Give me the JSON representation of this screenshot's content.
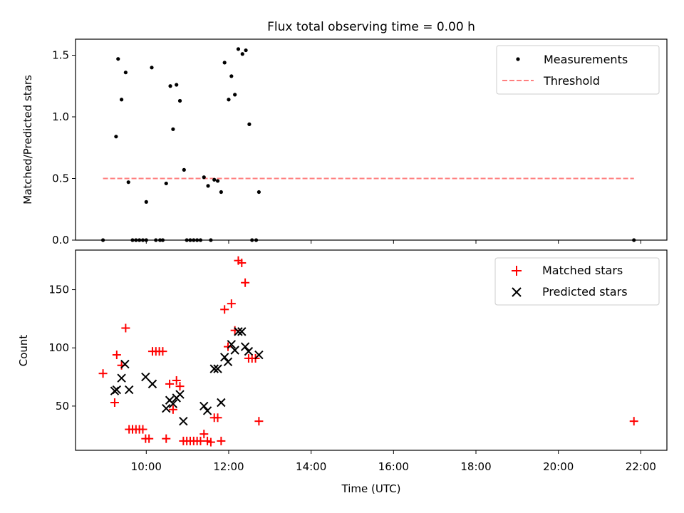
{
  "chart_data": [
    {
      "type": "scatter",
      "title": "Flux total observing time = 0.00 h",
      "xlabel": "",
      "ylabel": "Matched/Predicted stars",
      "xlim": [
        "08:17",
        "22:38"
      ],
      "ylim": [
        0,
        1.63
      ],
      "yticks": [
        0,
        0.5,
        1.0,
        1.5
      ],
      "ytick_labels": [
        "0.0",
        "0.5",
        "1.0",
        "1.5"
      ],
      "legend_position": "upper right",
      "series": [
        {
          "name": "Measurements",
          "marker": "dot",
          "color": "#000000",
          "points": [
            [
              "08:57",
              0.0
            ],
            [
              "09:16",
              0.84
            ],
            [
              "09:19",
              1.47
            ],
            [
              "09:24",
              1.14
            ],
            [
              "09:30",
              1.36
            ],
            [
              "09:34",
              0.47
            ],
            [
              "09:40",
              0.0
            ],
            [
              "09:45",
              0.0
            ],
            [
              "09:50",
              0.0
            ],
            [
              "09:55",
              0.0
            ],
            [
              "10:00",
              0.31
            ],
            [
              "10:00",
              0.0
            ],
            [
              "10:08",
              1.4
            ],
            [
              "10:14",
              0.0
            ],
            [
              "10:20",
              0.0
            ],
            [
              "10:24",
              0.0
            ],
            [
              "10:29",
              0.46
            ],
            [
              "10:35",
              1.25
            ],
            [
              "10:39",
              0.9
            ],
            [
              "10:44",
              1.26
            ],
            [
              "10:49",
              1.13
            ],
            [
              "10:55",
              0.57
            ],
            [
              "10:59",
              0.0
            ],
            [
              "11:04",
              0.0
            ],
            [
              "11:09",
              0.0
            ],
            [
              "11:14",
              0.0
            ],
            [
              "11:19",
              0.0
            ],
            [
              "11:24",
              0.51
            ],
            [
              "11:30",
              0.44
            ],
            [
              "11:34",
              0.0
            ],
            [
              "11:39",
              0.49
            ],
            [
              "11:44",
              0.48
            ],
            [
              "11:49",
              0.39
            ],
            [
              "11:54",
              1.44
            ],
            [
              "12:00",
              1.14
            ],
            [
              "12:04",
              1.33
            ],
            [
              "12:09",
              1.18
            ],
            [
              "12:14",
              1.55
            ],
            [
              "12:20",
              1.51
            ],
            [
              "12:25",
              1.54
            ],
            [
              "12:30",
              0.94
            ],
            [
              "12:34",
              0.0
            ],
            [
              "12:40",
              0.0
            ],
            [
              "12:44",
              0.39
            ],
            [
              "21:50",
              0.0
            ]
          ]
        },
        {
          "name": "Threshold",
          "line_style": "dashed",
          "color": "#ff7f7f",
          "points": [
            [
              "08:57",
              0.5
            ],
            [
              "21:50",
              0.5
            ]
          ]
        }
      ]
    },
    {
      "type": "scatter",
      "title": "",
      "xlabel": "Time (UTC)",
      "ylabel": "Count",
      "xlim": [
        "08:17",
        "22:38"
      ],
      "ylim": [
        12,
        184
      ],
      "yticks": [
        50,
        100,
        150
      ],
      "ytick_labels": [
        "50",
        "100",
        "150"
      ],
      "xticks": [
        "10:00",
        "12:00",
        "14:00",
        "16:00",
        "18:00",
        "20:00",
        "22:00"
      ],
      "xtick_labels": [
        "10:00",
        "12:00",
        "14:00",
        "16:00",
        "18:00",
        "20:00",
        "22:00"
      ],
      "legend_position": "upper right",
      "series": [
        {
          "name": "Matched stars",
          "marker": "plus",
          "color": "#ff0000",
          "points": [
            [
              "08:57",
              78
            ],
            [
              "09:14",
              53
            ],
            [
              "09:17",
              94
            ],
            [
              "09:24",
              85
            ],
            [
              "09:30",
              117
            ],
            [
              "09:35",
              30
            ],
            [
              "09:40",
              30
            ],
            [
              "09:45",
              30
            ],
            [
              "09:50",
              30
            ],
            [
              "09:55",
              30
            ],
            [
              "09:59",
              22
            ],
            [
              "10:04",
              22
            ],
            [
              "10:09",
              97
            ],
            [
              "10:14",
              97
            ],
            [
              "10:19",
              97
            ],
            [
              "10:24",
              97
            ],
            [
              "10:29",
              22
            ],
            [
              "10:34",
              69
            ],
            [
              "10:39",
              47
            ],
            [
              "10:44",
              72
            ],
            [
              "10:49",
              67
            ],
            [
              "10:54",
              20
            ],
            [
              "10:59",
              20
            ],
            [
              "11:04",
              20
            ],
            [
              "11:09",
              20
            ],
            [
              "11:14",
              20
            ],
            [
              "11:19",
              20
            ],
            [
              "11:24",
              26
            ],
            [
              "11:29",
              20
            ],
            [
              "11:34",
              19
            ],
            [
              "11:39",
              40
            ],
            [
              "11:44",
              40
            ],
            [
              "11:49",
              20
            ],
            [
              "11:54",
              133
            ],
            [
              "11:59",
              101
            ],
            [
              "12:04",
              138
            ],
            [
              "12:09",
              115
            ],
            [
              "12:14",
              175
            ],
            [
              "12:19",
              173
            ],
            [
              "12:24",
              156
            ],
            [
              "12:29",
              91
            ],
            [
              "12:34",
              91
            ],
            [
              "12:39",
              91
            ],
            [
              "12:44",
              37
            ],
            [
              "21:50",
              37
            ]
          ]
        },
        {
          "name": "Predicted stars",
          "marker": "x",
          "color": "#000000",
          "points": [
            [
              "09:14",
              63
            ],
            [
              "09:17",
              64
            ],
            [
              "09:24",
              74
            ],
            [
              "09:29",
              86
            ],
            [
              "09:35",
              64
            ],
            [
              "09:59",
              75
            ],
            [
              "10:09",
              69
            ],
            [
              "10:29",
              48
            ],
            [
              "10:34",
              55
            ],
            [
              "10:39",
              52
            ],
            [
              "10:44",
              57
            ],
            [
              "10:49",
              60
            ],
            [
              "10:54",
              37
            ],
            [
              "11:24",
              50
            ],
            [
              "11:29",
              46
            ],
            [
              "11:39",
              82
            ],
            [
              "11:44",
              82
            ],
            [
              "11:49",
              53
            ],
            [
              "11:54",
              92
            ],
            [
              "11:59",
              88
            ],
            [
              "12:04",
              103
            ],
            [
              "12:09",
              98
            ],
            [
              "12:14",
              114
            ],
            [
              "12:19",
              114
            ],
            [
              "12:24",
              101
            ],
            [
              "12:29",
              97
            ],
            [
              "12:44",
              94
            ]
          ]
        }
      ]
    }
  ]
}
